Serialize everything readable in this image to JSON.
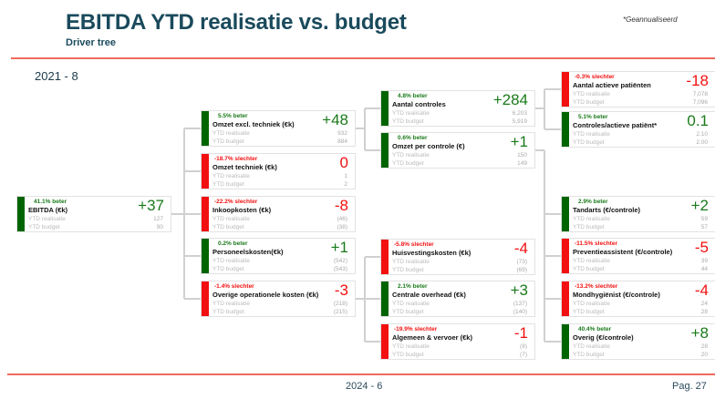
{
  "header": {
    "title": "EBITDA YTD realisatie vs. budget",
    "subtitle": "Driver tree",
    "note": "*Geannualiseerd"
  },
  "period": "2021 - 8",
  "footer": {
    "date": "2024 - 6",
    "page": "Pag. 27"
  },
  "labels": {
    "realisatie": "YTD realisatie",
    "budget": "YTD budget"
  },
  "colors": {
    "good": "#006400",
    "bad": "#f21010",
    "accent_rule": "#f06a60",
    "title": "#1a4a5c"
  },
  "nodes": [
    {
      "id": "ebitda",
      "status": "good",
      "pct": "41.1% beter",
      "name": "EBITDA (€k)",
      "delta": "+37",
      "realisatie": "127",
      "budget": "90"
    },
    {
      "id": "omzet-excl",
      "status": "good",
      "pct": "5.5% beter",
      "name": "Omzet excl. techniek (€k)",
      "delta": "+48",
      "realisatie": "932",
      "budget": "884"
    },
    {
      "id": "omzet-techniek",
      "status": "bad",
      "pct": "-18.7% slechter",
      "name": "Omzet techniek (€k)",
      "delta": "0",
      "realisatie": "1",
      "budget": "2"
    },
    {
      "id": "inkoopkosten",
      "status": "bad",
      "pct": "-22.2% slechter",
      "name": "Inkoopkosten (€k)",
      "delta": "-8",
      "realisatie": "(46)",
      "budget": "(38)"
    },
    {
      "id": "personeelskosten",
      "status": "good",
      "pct": "0.2% beter",
      "name": "Personeelskosten(€k)",
      "delta": "+1",
      "realisatie": "(542)",
      "budget": "(543)"
    },
    {
      "id": "overige-operationele",
      "status": "bad",
      "pct": "-1.4% slechter",
      "name": "Overige operationele kosten (€k)",
      "delta": "-3",
      "realisatie": "(218)",
      "budget": "(215)"
    },
    {
      "id": "aantal-controles",
      "status": "good",
      "pct": "4.8% beter",
      "name": "Aantal controles",
      "delta": "+284",
      "realisatie": "6,203",
      "budget": "5,919"
    },
    {
      "id": "omzet-per-controle",
      "status": "good",
      "pct": "0.6% beter",
      "name": "Omzet per controle (€)",
      "delta": "+1",
      "realisatie": "150",
      "budget": "149"
    },
    {
      "id": "huisvestingskosten",
      "status": "bad",
      "pct": "-5.8% slechter",
      "name": "Huisvestingskosten (€k)",
      "delta": "-4",
      "realisatie": "(73)",
      "budget": "(69)"
    },
    {
      "id": "centrale-overhead",
      "status": "good",
      "pct": "2.1% beter",
      "name": "Centrale overhead (€k)",
      "delta": "+3",
      "realisatie": "(137)",
      "budget": "(140)"
    },
    {
      "id": "algemeen-vervoer",
      "status": "bad",
      "pct": "-19.9% slechter",
      "name": "Algemeen & vervoer (€k)",
      "delta": "-1",
      "realisatie": "(8)",
      "budget": "(7)"
    },
    {
      "id": "actieve-patienten",
      "status": "bad",
      "pct": "-0.3% slechter",
      "name": "Aantal actieve patiënten",
      "delta": "-18",
      "realisatie": "7,078",
      "budget": "7,096"
    },
    {
      "id": "controles-per-patient",
      "status": "good",
      "pct": "5.1% beter",
      "name": "Controles/actieve patiënt*",
      "delta": "0.1",
      "realisatie": "2.10",
      "budget": "2.00"
    },
    {
      "id": "tandarts",
      "status": "good",
      "pct": "2.9% beter",
      "name": "Tandarts (€/controle)",
      "delta": "+2",
      "realisatie": "59",
      "budget": "57"
    },
    {
      "id": "preventieassistent",
      "status": "bad",
      "pct": "-11.5% slechter",
      "name": "Preventieassistent (€/controle)",
      "delta": "-5",
      "realisatie": "39",
      "budget": "44"
    },
    {
      "id": "mondhygienist",
      "status": "bad",
      "pct": "-13.2% slechter",
      "name": "Mondhygiënist (€/controle)",
      "delta": "-4",
      "realisatie": "24",
      "budget": "28"
    },
    {
      "id": "overig",
      "status": "good",
      "pct": "40.4% beter",
      "name": "Overig (€/controle)",
      "delta": "+8",
      "realisatie": "28",
      "budget": "20"
    }
  ]
}
